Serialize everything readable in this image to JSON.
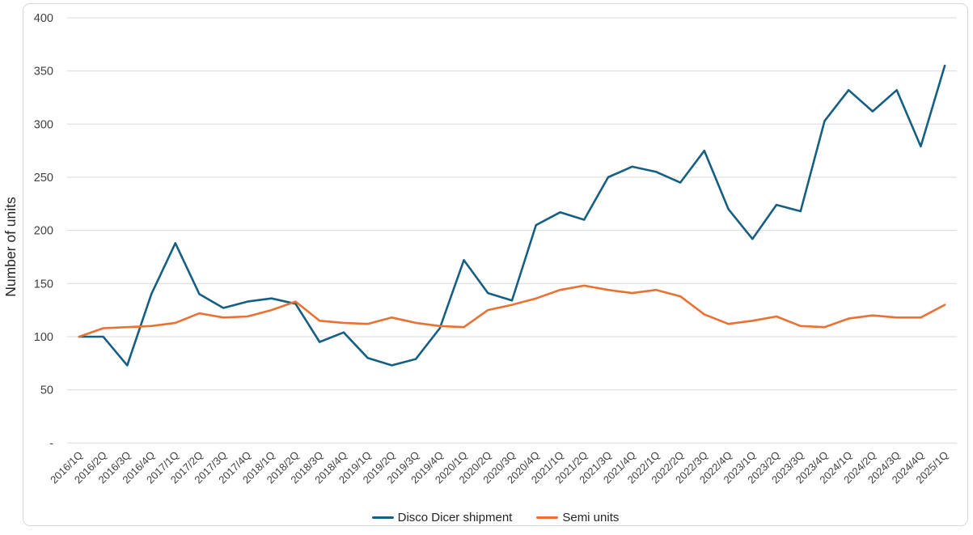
{
  "chart_data": {
    "type": "line",
    "title": "",
    "xlabel": "",
    "ylabel": "Number of units",
    "ylim": [
      0,
      400
    ],
    "ytick_step": 50,
    "zero_tick_label": "-",
    "grid": true,
    "legend_position": "bottom",
    "colors": {
      "grid": "#d9d9d9",
      "axis_text": "#404040",
      "title_text": "#262626",
      "series_blue": "#156082",
      "series_orange": "#E97132"
    },
    "categories": [
      "2016/1Q",
      "2016/2Q",
      "2016/3Q",
      "2016/4Q",
      "2017/1Q",
      "2017/2Q",
      "2017/3Q",
      "2017/4Q",
      "2018/1Q",
      "2018/2Q",
      "2018/3Q",
      "2018/4Q",
      "2019/1Q",
      "2019/2Q",
      "2019/3Q",
      "2019/4Q",
      "2020/1Q",
      "2020/2Q",
      "2020/3Q",
      "2020/4Q",
      "2021/1Q",
      "2021/2Q",
      "2021/3Q",
      "2021/4Q",
      "2022/1Q",
      "2022/2Q",
      "2022/3Q",
      "2022/4Q",
      "2023/1Q",
      "2023/2Q",
      "2023/3Q",
      "2023/4Q",
      "2024/1Q",
      "2024/2Q",
      "2024/3Q",
      "2024/4Q",
      "2025/1Q"
    ],
    "series": [
      {
        "name": "Disco Dicer shipment",
        "color": "#156082",
        "values": [
          100,
          100,
          73,
          140,
          188,
          140,
          127,
          133,
          136,
          131,
          95,
          104,
          80,
          73,
          79,
          108,
          172,
          141,
          134,
          205,
          217,
          210,
          250,
          260,
          255,
          245,
          275,
          220,
          192,
          224,
          218,
          303,
          332,
          312,
          332,
          279,
          355
        ]
      },
      {
        "name": "Semi units",
        "color": "#E97132",
        "values": [
          100,
          108,
          109,
          110,
          113,
          122,
          118,
          119,
          125,
          133,
          115,
          113,
          112,
          118,
          113,
          110,
          109,
          125,
          130,
          136,
          144,
          148,
          144,
          141,
          144,
          138,
          121,
          112,
          115,
          119,
          110,
          109,
          117,
          120,
          118,
          118,
          130
        ]
      }
    ]
  }
}
